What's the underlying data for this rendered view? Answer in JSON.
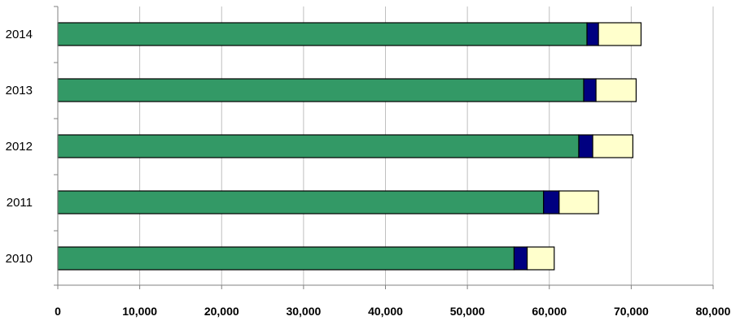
{
  "chart_data": {
    "type": "bar",
    "orientation": "horizontal",
    "stacked": true,
    "categories": [
      "2010",
      "2011",
      "2012",
      "2013",
      "2014"
    ],
    "series": [
      {
        "values": [
          55700,
          59300,
          63600,
          64200,
          64600
        ],
        "color": "#339966"
      },
      {
        "values": [
          1600,
          1900,
          1700,
          1500,
          1400
        ],
        "color": "#000080"
      },
      {
        "values": [
          3300,
          4800,
          4900,
          4900,
          5200
        ],
        "color": "#ffffcc"
      }
    ],
    "xlim": [
      0,
      80000
    ],
    "x_ticks": [
      "0",
      "10,000",
      "20,000",
      "30,000",
      "40,000",
      "50,000",
      "60,000",
      "70,000",
      "80,000"
    ],
    "x_tick_values": [
      0,
      10000,
      20000,
      30000,
      40000,
      50000,
      60000,
      70000,
      80000
    ],
    "grid": "vertical",
    "legend": "none",
    "title": "",
    "xlabel": "",
    "ylabel": ""
  }
}
